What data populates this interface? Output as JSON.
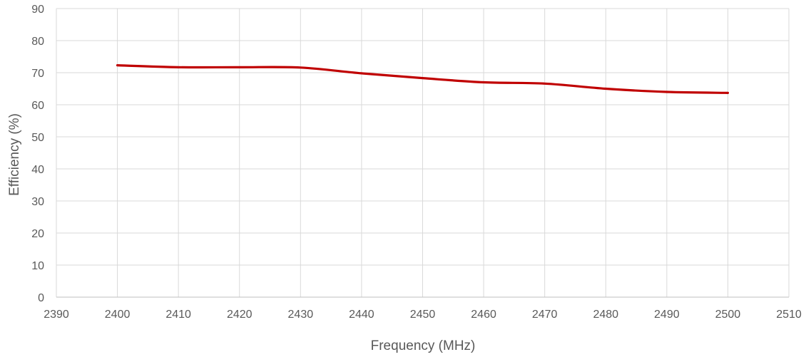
{
  "chart_data": {
    "type": "line",
    "title": "",
    "xlabel": "Frequency (MHz)",
    "ylabel": "Efficiency (%)",
    "xlim": [
      2390,
      2510
    ],
    "ylim": [
      0,
      90
    ],
    "x_ticks": [
      "2390",
      "2400",
      "2410",
      "2420",
      "2430",
      "2440",
      "2450",
      "2460",
      "2470",
      "2480",
      "2490",
      "2500",
      "2510"
    ],
    "y_ticks": [
      "0",
      "10",
      "20",
      "30",
      "40",
      "50",
      "60",
      "70",
      "80",
      "90"
    ],
    "grid": true,
    "legend": "none",
    "series": [
      {
        "color": "#c00000",
        "x": [
          2400,
          2410,
          2420,
          2430,
          2440,
          2450,
          2460,
          2470,
          2480,
          2490,
          2500
        ],
        "y": [
          72.3,
          71.7,
          71.7,
          71.6,
          69.8,
          68.3,
          67.0,
          66.6,
          65.0,
          64.0,
          63.7
        ]
      }
    ]
  }
}
